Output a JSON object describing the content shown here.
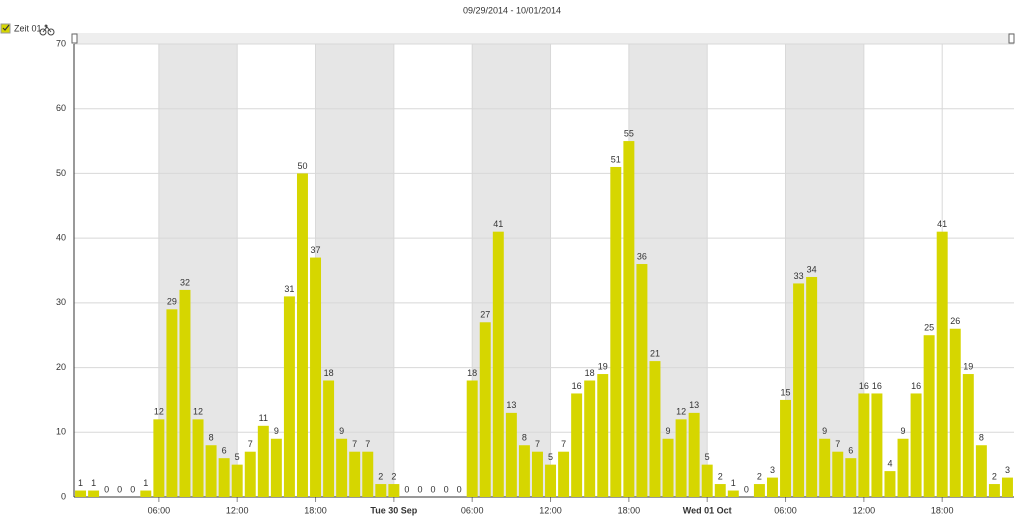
{
  "chart_data": {
    "type": "bar",
    "title": "09/29/2014 - 10/01/2014",
    "legend": "Zeit 01",
    "color": "#d6d600",
    "values": [
      1,
      1,
      0,
      0,
      0,
      1,
      12,
      29,
      32,
      12,
      8,
      6,
      5,
      7,
      11,
      9,
      31,
      50,
      37,
      18,
      9,
      7,
      7,
      2,
      2,
      0,
      0,
      0,
      0,
      0,
      18,
      27,
      41,
      13,
      8,
      7,
      5,
      7,
      16,
      18,
      19,
      51,
      55,
      36,
      21,
      9,
      12,
      13,
      5,
      2,
      1,
      0,
      2,
      3,
      15,
      33,
      34,
      9,
      7,
      6,
      16,
      16,
      4,
      9,
      16,
      25,
      41,
      26,
      19,
      8,
      2,
      3
    ],
    "xlim": [
      -0.5,
      71.5
    ],
    "xticks": [
      {
        "value": 6,
        "label": "06:00"
      },
      {
        "value": 12,
        "label": "12:00"
      },
      {
        "value": 18,
        "label": "18:00"
      },
      {
        "value": 24,
        "label": "Tue 30 Sep"
      },
      {
        "value": 30,
        "label": "06:00"
      },
      {
        "value": 36,
        "label": "12:00"
      },
      {
        "value": 42,
        "label": "18:00"
      },
      {
        "value": 48,
        "label": "Wed 01 Oct"
      },
      {
        "value": 54,
        "label": "06:00"
      },
      {
        "value": 60,
        "label": "12:00"
      },
      {
        "value": 66,
        "label": "18:00"
      }
    ],
    "ylim": [
      0,
      70
    ],
    "yticks": [
      0,
      10,
      20,
      30,
      40,
      50,
      60,
      70
    ],
    "grid": true
  }
}
